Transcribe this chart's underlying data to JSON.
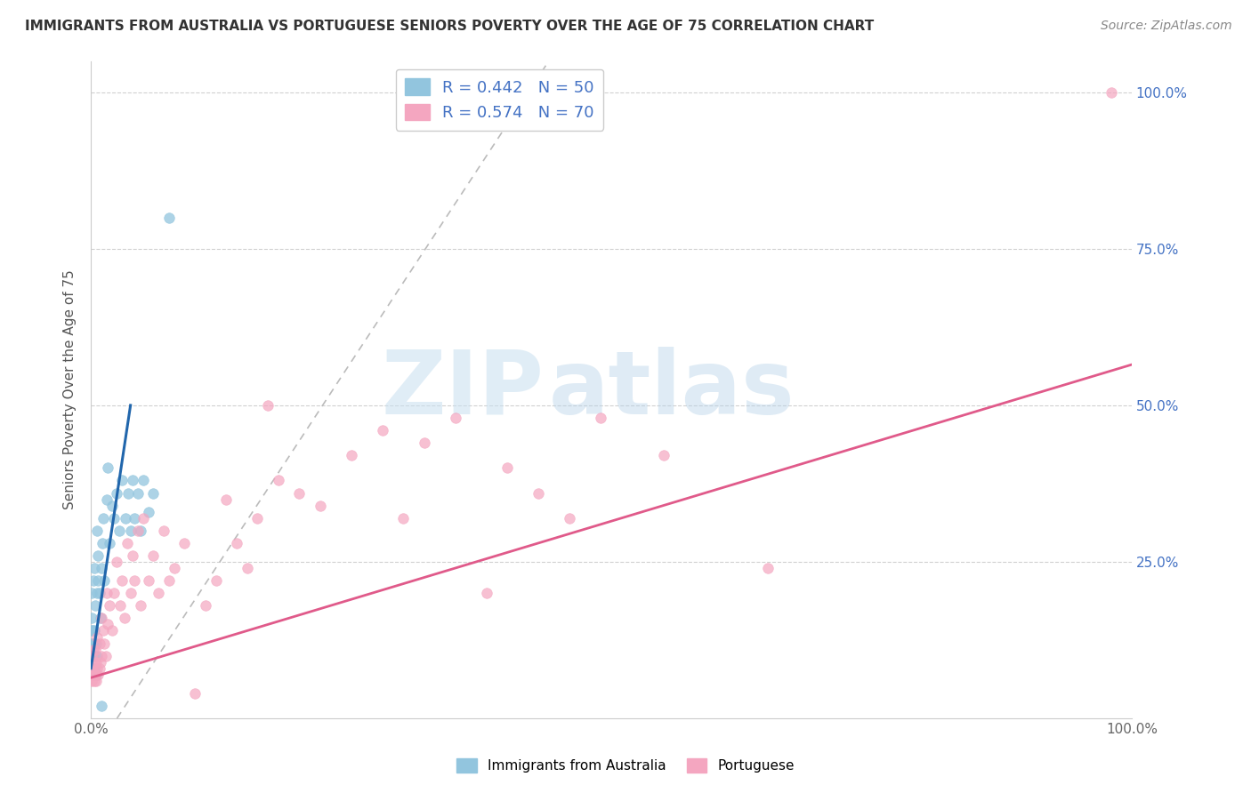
{
  "title": "IMMIGRANTS FROM AUSTRALIA VS PORTUGUESE SENIORS POVERTY OVER THE AGE OF 75 CORRELATION CHART",
  "source": "Source: ZipAtlas.com",
  "ylabel": "Seniors Poverty Over the Age of 75",
  "right_ytick_labels": [
    "100.0%",
    "75.0%",
    "50.0%",
    "25.0%"
  ],
  "right_ytick_positions": [
    1.0,
    0.75,
    0.5,
    0.25
  ],
  "legend_blue_r": "R = 0.442",
  "legend_blue_n": "N = 50",
  "legend_pink_r": "R = 0.574",
  "legend_pink_n": "N = 70",
  "blue_color": "#92c5de",
  "pink_color": "#f4a6c0",
  "blue_line_color": "#2166ac",
  "pink_line_color": "#e05a8a",
  "dashed_line_color": "#bbbbbb",
  "title_fontsize": 11,
  "axis_label_fontsize": 11,
  "tick_fontsize": 11,
  "legend_fontsize": 13,
  "source_fontsize": 10,
  "blue_scatter": {
    "x": [
      0.0005,
      0.0005,
      0.0008,
      0.001,
      0.001,
      0.001,
      0.0015,
      0.0015,
      0.002,
      0.002,
      0.002,
      0.0025,
      0.003,
      0.003,
      0.003,
      0.004,
      0.004,
      0.005,
      0.005,
      0.006,
      0.006,
      0.006,
      0.007,
      0.007,
      0.008,
      0.009,
      0.01,
      0.011,
      0.012,
      0.013,
      0.015,
      0.016,
      0.018,
      0.02,
      0.022,
      0.025,
      0.027,
      0.03,
      0.033,
      0.036,
      0.038,
      0.04,
      0.042,
      0.045,
      0.048,
      0.05,
      0.055,
      0.06,
      0.075,
      0.01
    ],
    "y": [
      0.1,
      0.14,
      0.08,
      0.12,
      0.16,
      0.2,
      0.1,
      0.14,
      0.07,
      0.12,
      0.22,
      0.1,
      0.08,
      0.14,
      0.24,
      0.1,
      0.18,
      0.07,
      0.12,
      0.1,
      0.2,
      0.3,
      0.22,
      0.26,
      0.2,
      0.16,
      0.24,
      0.28,
      0.32,
      0.22,
      0.35,
      0.4,
      0.28,
      0.34,
      0.32,
      0.36,
      0.3,
      0.38,
      0.32,
      0.36,
      0.3,
      0.38,
      0.32,
      0.36,
      0.3,
      0.38,
      0.33,
      0.36,
      0.8,
      0.02
    ]
  },
  "pink_scatter": {
    "x": [
      0.0005,
      0.001,
      0.001,
      0.0015,
      0.002,
      0.002,
      0.003,
      0.003,
      0.004,
      0.004,
      0.005,
      0.005,
      0.006,
      0.006,
      0.007,
      0.008,
      0.008,
      0.009,
      0.01,
      0.01,
      0.012,
      0.013,
      0.014,
      0.015,
      0.016,
      0.018,
      0.02,
      0.022,
      0.025,
      0.028,
      0.03,
      0.032,
      0.035,
      0.038,
      0.04,
      0.042,
      0.045,
      0.048,
      0.05,
      0.055,
      0.06,
      0.065,
      0.07,
      0.075,
      0.08,
      0.09,
      0.1,
      0.11,
      0.12,
      0.13,
      0.14,
      0.15,
      0.16,
      0.17,
      0.18,
      0.2,
      0.22,
      0.25,
      0.28,
      0.3,
      0.32,
      0.35,
      0.38,
      0.4,
      0.43,
      0.46,
      0.49,
      0.55,
      0.65,
      0.98
    ],
    "y": [
      0.08,
      0.06,
      0.1,
      0.08,
      0.07,
      0.11,
      0.06,
      0.09,
      0.07,
      0.11,
      0.06,
      0.09,
      0.08,
      0.13,
      0.07,
      0.08,
      0.12,
      0.09,
      0.1,
      0.16,
      0.14,
      0.12,
      0.1,
      0.2,
      0.15,
      0.18,
      0.14,
      0.2,
      0.25,
      0.18,
      0.22,
      0.16,
      0.28,
      0.2,
      0.26,
      0.22,
      0.3,
      0.18,
      0.32,
      0.22,
      0.26,
      0.2,
      0.3,
      0.22,
      0.24,
      0.28,
      0.04,
      0.18,
      0.22,
      0.35,
      0.28,
      0.24,
      0.32,
      0.5,
      0.38,
      0.36,
      0.34,
      0.42,
      0.46,
      0.32,
      0.44,
      0.48,
      0.2,
      0.4,
      0.36,
      0.32,
      0.48,
      0.42,
      0.24,
      1.0
    ]
  },
  "xlim": [
    0.0,
    1.0
  ],
  "ylim": [
    0.0,
    1.05
  ],
  "blue_line_x": [
    0.0,
    0.038
  ],
  "blue_line_y": [
    0.08,
    0.5
  ],
  "pink_line_x": [
    0.0,
    1.0
  ],
  "pink_line_y": [
    0.065,
    0.565
  ],
  "dash_line_x": [
    0.025,
    0.44
  ],
  "dash_line_y": [
    0.0,
    1.05
  ],
  "watermark_zip": "ZIP",
  "watermark_atlas": "atlas",
  "background_color": "#ffffff",
  "grid_color": "#d0d0d0",
  "grid_yticks": [
    0.0,
    0.25,
    0.5,
    0.75,
    1.0
  ],
  "legend_color": "#4472c4"
}
